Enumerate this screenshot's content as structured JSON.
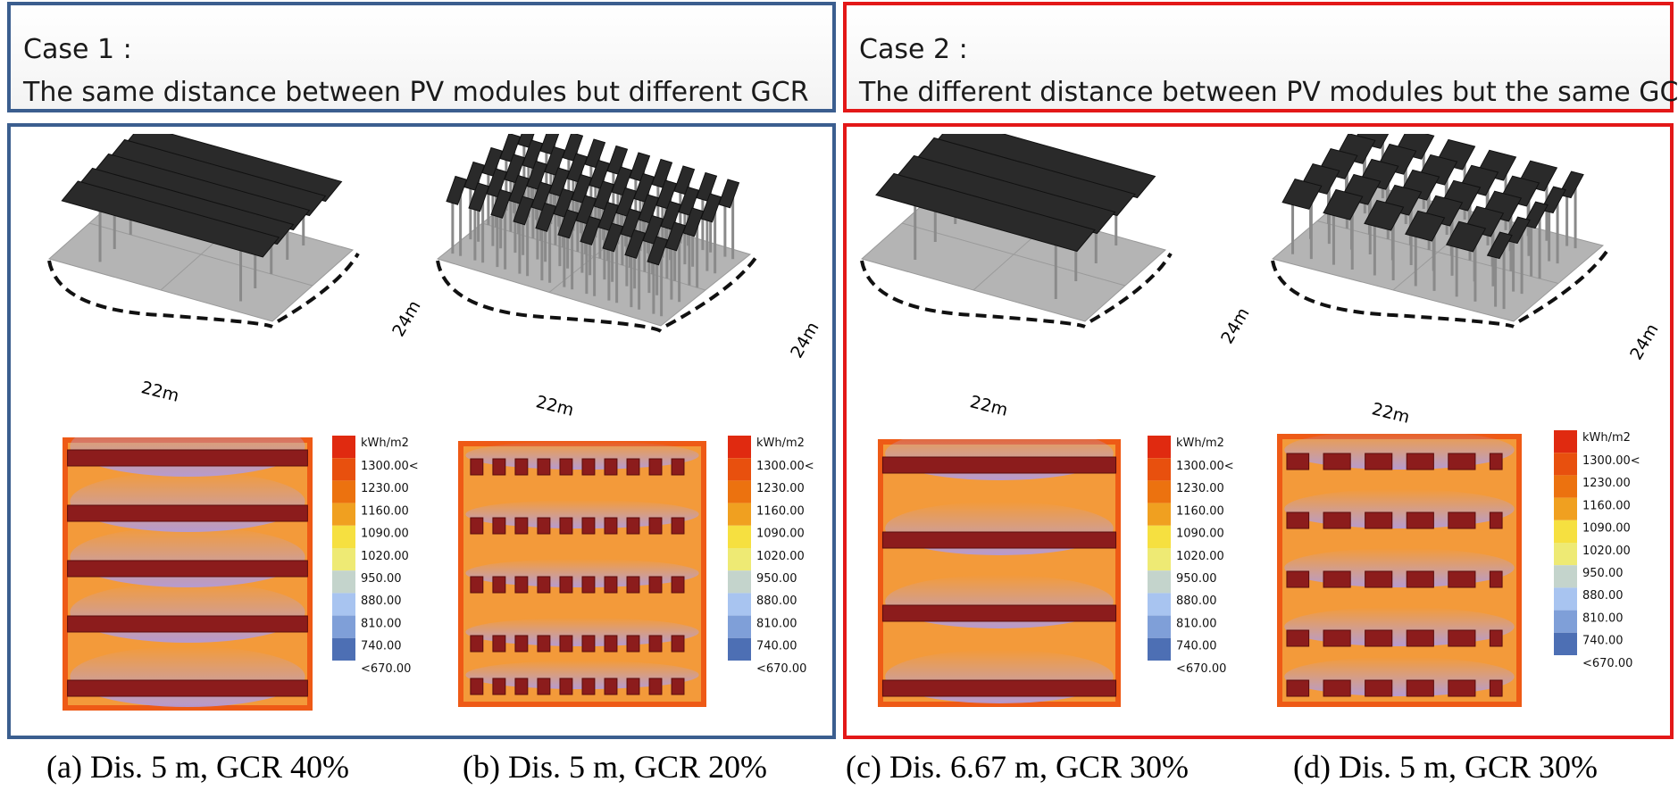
{
  "case1": {
    "title": "Case 1 :",
    "description": "The same distance between PV modules but different GCR"
  },
  "case2": {
    "title": "Case 2 :",
    "description": "The different distance between PV modules but the same GCR"
  },
  "dimensions": {
    "width_label": "22m",
    "depth_label": "24m"
  },
  "legend": {
    "unit": "kWh/m2",
    "labels": [
      "1300.00<",
      "1230.00",
      "1160.00",
      "1090.00",
      "1020.00",
      "950.00",
      "880.00",
      "810.00",
      "740.00",
      "<670.00"
    ],
    "colors": [
      "#e02a10",
      "#e8500e",
      "#ec720f",
      "#f0a020",
      "#f6e040",
      "#eeea74",
      "#c4d4cc",
      "#a8c4f0",
      "#7f9fd8",
      "#4d6fb4"
    ]
  },
  "colors": {
    "case1_border": "#3b5e8f",
    "case2_border": "#e31818",
    "ground": "#b4b4b4",
    "module": "#2a2a2a"
  },
  "panels": [
    {
      "caption": "(a) Dis. 5 m, GCR 40%",
      "layout": "continuous",
      "rows": 5
    },
    {
      "caption": "(b) Dis. 5 m, GCR 20%",
      "layout": "grid",
      "rows": 5,
      "cols": 10
    },
    {
      "caption": "(c) Dis. 6.67 m, GCR 30%",
      "layout": "continuous",
      "rows": 4
    },
    {
      "caption": "(d) Dis. 5 m, GCR 30%",
      "layout": "blocks",
      "rows": 5,
      "cols": 6
    }
  ]
}
